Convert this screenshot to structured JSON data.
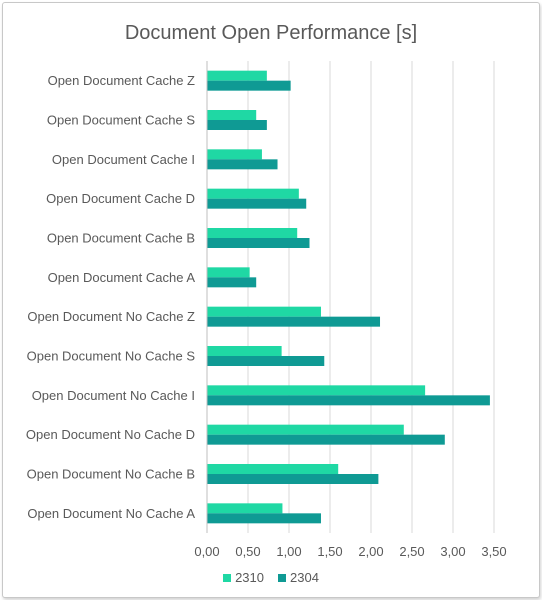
{
  "chart_data": {
    "type": "bar",
    "orientation": "horizontal",
    "title": "Document Open Performance [s]",
    "xlabel": "",
    "ylabel": "",
    "xlim": [
      0,
      3.5
    ],
    "x_ticks": [
      "0,00",
      "0,50",
      "1,00",
      "1,50",
      "2,00",
      "2,50",
      "3,00",
      "3,50"
    ],
    "grid": "vertical",
    "legend_position": "bottom",
    "categories": [
      "Open Document Cache Z",
      "Open Document Cache S",
      "Open Document Cache I",
      "Open Document Cache D",
      "Open Document Cache B",
      "Open Document Cache A",
      "Open Document No Cache Z",
      "Open Document No Cache S",
      "Open Document No Cache I",
      "Open Document No Cache D",
      "Open Document No Cache B",
      "Open Document No Cache A"
    ],
    "series": [
      {
        "name": "2310",
        "color": "#1fd8a4",
        "values": [
          0.73,
          0.6,
          0.67,
          1.12,
          1.1,
          0.52,
          1.39,
          0.91,
          2.66,
          2.4,
          1.6,
          0.92
        ]
      },
      {
        "name": "2304",
        "color": "#0f9a94",
        "values": [
          1.02,
          0.73,
          0.86,
          1.21,
          1.25,
          0.6,
          2.11,
          1.43,
          3.45,
          2.9,
          2.09,
          1.39
        ]
      }
    ]
  }
}
